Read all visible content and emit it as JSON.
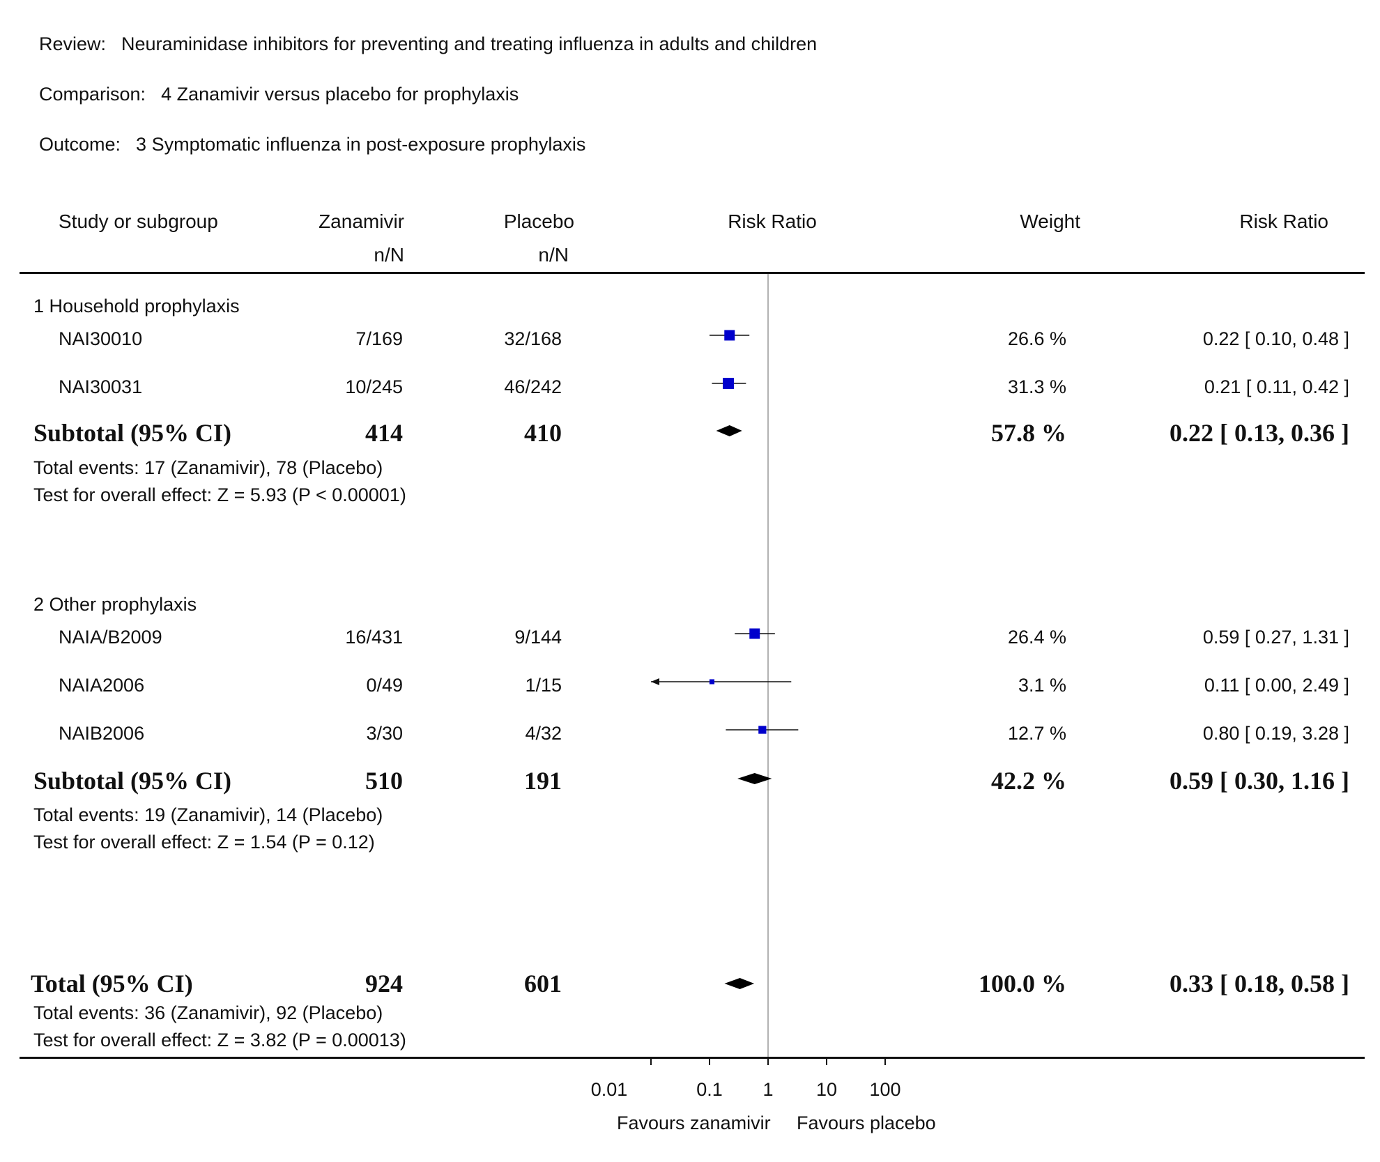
{
  "header": {
    "review_label": "Review:",
    "review_text": "Neuraminidase inhibitors for preventing and treating influenza in adults and children",
    "comparison_label": "Comparison:",
    "comparison_text": "4 Zanamivir versus placebo for prophylaxis",
    "outcome_label": "Outcome:",
    "outcome_text": "3 Symptomatic influenza in post-exposure prophylaxis"
  },
  "columns": {
    "study": "Study or subgroup",
    "treatment": "Zanamivir",
    "treatment_sub": "n/N",
    "control": "Placebo",
    "control_sub": "n/N",
    "plot": "Risk Ratio",
    "weight": "Weight",
    "effect": "Risk Ratio"
  },
  "groups": [
    {
      "title": "1 Household prophylaxis",
      "studies": [
        {
          "name": "NAI30010",
          "treat": "7/169",
          "ctrl": "32/168",
          "weight": "26.6 %",
          "rr": "0.22 [ 0.10, 0.48 ]"
        },
        {
          "name": "NAI30031",
          "treat": "10/245",
          "ctrl": "46/242",
          "weight": "31.3 %",
          "rr": "0.21 [ 0.11, 0.42 ]"
        }
      ],
      "subtotal": {
        "label": "Subtotal (95% CI)",
        "treat": "414",
        "ctrl": "410",
        "weight": "57.8 %",
        "rr": "0.22 [ 0.13, 0.36 ]"
      },
      "events": "Total events: 17 (Zanamivir), 78 (Placebo)",
      "test": "Test for overall effect: Z = 5.93 (P < 0.00001)"
    },
    {
      "title": "2 Other prophylaxis",
      "studies": [
        {
          "name": "NAIA/B2009",
          "treat": "16/431",
          "ctrl": "9/144",
          "weight": "26.4 %",
          "rr": "0.59 [ 0.27, 1.31 ]"
        },
        {
          "name": "NAIA2006",
          "treat": "0/49",
          "ctrl": "1/15",
          "weight": "3.1 %",
          "rr": "0.11 [ 0.00, 2.49 ]"
        },
        {
          "name": "NAIB2006",
          "treat": "3/30",
          "ctrl": "4/32",
          "weight": "12.7 %",
          "rr": "0.80 [ 0.19, 3.28 ]"
        }
      ],
      "subtotal": {
        "label": "Subtotal (95% CI)",
        "treat": "510",
        "ctrl": "191",
        "weight": "42.2 %",
        "rr": "0.59 [ 0.30, 1.16 ]"
      },
      "events": "Total events: 19 (Zanamivir), 14 (Placebo)",
      "test": "Test for overall effect: Z = 1.54 (P = 0.12)"
    }
  ],
  "total": {
    "label": "Total (95% CI)",
    "treat": "924",
    "ctrl": "601",
    "weight": "100.0 %",
    "rr": "0.33 [ 0.18, 0.58 ]",
    "events": "Total events: 36 (Zanamivir), 92 (Placebo)",
    "test": "Test for overall effect: Z = 3.82 (P = 0.00013)"
  },
  "axis": {
    "ticks": [
      "0.01",
      "0.1",
      "1",
      "10",
      "100"
    ],
    "left_label": "Favours zanamivir",
    "right_label": "Favours placebo"
  },
  "chart_data": {
    "type": "forest",
    "scale": "log",
    "xlim": [
      0.01,
      100
    ],
    "reference": 1,
    "tick_values": [
      0.01,
      0.1,
      1,
      10,
      100
    ],
    "studies": [
      {
        "name": "NAI30010",
        "rr": 0.22,
        "lo": 0.1,
        "hi": 0.48,
        "weight": 26.6
      },
      {
        "name": "NAI30031",
        "rr": 0.21,
        "lo": 0.11,
        "hi": 0.42,
        "weight": 31.3
      },
      {
        "name": "NAIA/B2009",
        "rr": 0.59,
        "lo": 0.27,
        "hi": 1.31,
        "weight": 26.4
      },
      {
        "name": "NAIA2006",
        "rr": 0.11,
        "lo": 0.0,
        "hi": 2.49,
        "weight": 3.1
      },
      {
        "name": "NAIB2006",
        "rr": 0.8,
        "lo": 0.19,
        "hi": 3.28,
        "weight": 12.7
      }
    ],
    "summaries": [
      {
        "name": "Subtotal 1 Household prophylaxis",
        "rr": 0.22,
        "lo": 0.13,
        "hi": 0.36
      },
      {
        "name": "Subtotal 2 Other prophylaxis",
        "rr": 0.59,
        "lo": 0.3,
        "hi": 1.16
      },
      {
        "name": "Total",
        "rr": 0.33,
        "lo": 0.18,
        "hi": 0.58
      }
    ],
    "colors": {
      "study_marker": "#0000cc",
      "summary_marker": "#000000",
      "reference_line": "#999999"
    }
  }
}
